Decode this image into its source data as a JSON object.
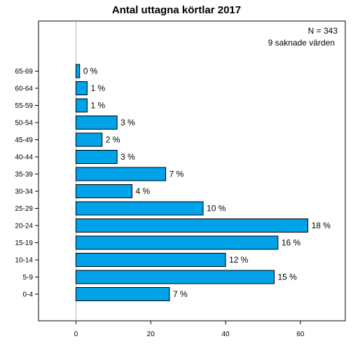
{
  "chart_data": {
    "type": "bar",
    "orientation": "horizontal",
    "title": "Antal uttagna körtlar 2017",
    "annotations": [
      "N = 343",
      "9 saknade värden"
    ],
    "categories": [
      "0-4",
      "5-9",
      "10-14",
      "15-19",
      "20-24",
      "25-29",
      "30-34",
      "35-39",
      "40-44",
      "45-49",
      "50-54",
      "55-59",
      "60-64",
      "65-69"
    ],
    "values": [
      25,
      53,
      40,
      54,
      62,
      34,
      15,
      24,
      11,
      7,
      11,
      3,
      3,
      1
    ],
    "data_labels": [
      "7 %",
      "15 %",
      "12 %",
      "16 %",
      "18 %",
      "10 %",
      "4 %",
      "7 %",
      "3 %",
      "2 %",
      "3 %",
      "1 %",
      "1 %",
      "0 %"
    ],
    "xlim": [
      -10,
      72
    ],
    "xticks": [
      0,
      20,
      40,
      60
    ],
    "xlabel": "",
    "ylabel": "",
    "bar_color": "#00a2e8",
    "zero_line_color": "#b0b0c8",
    "grid": false,
    "legend": "none"
  }
}
